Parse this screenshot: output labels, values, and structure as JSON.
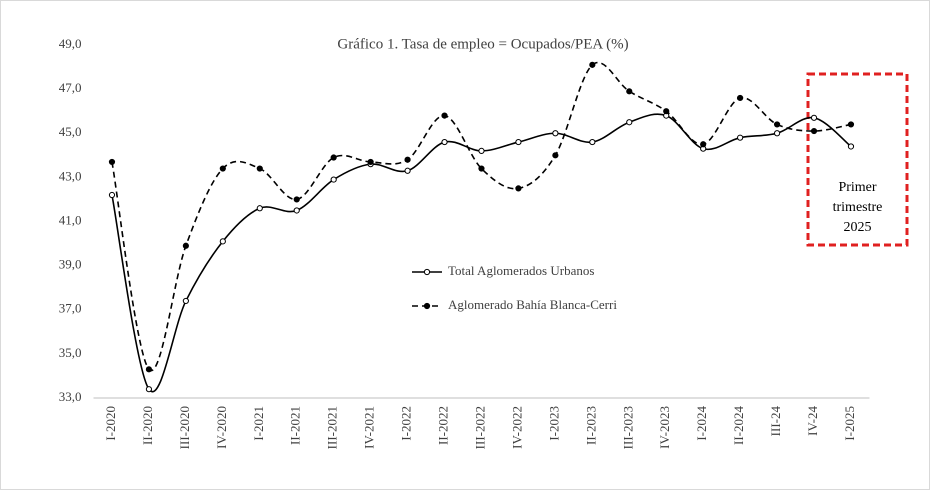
{
  "chart_data": {
    "type": "line",
    "title": "Gráfico  1. Tasa de empleo = Ocupados/PEA (%)",
    "categories": [
      "I-2020",
      "II-2020",
      "III-2020",
      "IV-2020",
      "I-2021",
      "II-2021",
      "III-2021",
      "IV-2021",
      "I-2022",
      "II-2022",
      "III-2022",
      "IV-2022",
      "I-2023",
      "II-2023",
      "III-2023",
      "IV-2023",
      "I-2024",
      "II-2024",
      "III-24",
      "IV-24",
      "I-2025"
    ],
    "series": [
      {
        "name": "Total Aglomerados Urbanos",
        "color": "#000000",
        "dash": "solid",
        "marker": "open",
        "values": [
          42.2,
          33.4,
          37.4,
          40.1,
          41.6,
          41.5,
          42.9,
          43.6,
          43.3,
          44.6,
          44.2,
          44.6,
          45.0,
          44.6,
          45.5,
          45.8,
          44.3,
          44.8,
          45.0,
          45.7,
          44.4
        ]
      },
      {
        "name": "Aglomerado Bahía Blanca-Cerri",
        "color": "#000000",
        "dash": "dashed",
        "marker": "filled",
        "values": [
          43.7,
          34.3,
          39.9,
          43.4,
          43.4,
          42.0,
          43.9,
          43.7,
          43.8,
          45.8,
          43.4,
          42.5,
          44.0,
          48.1,
          46.9,
          46.0,
          44.5,
          46.6,
          45.4,
          45.1,
          45.4
        ]
      }
    ],
    "ylim": [
      33,
      49
    ],
    "yticks": [
      {
        "value": 33,
        "label": "33,0"
      },
      {
        "value": 35,
        "label": "35,0"
      },
      {
        "value": 37,
        "label": "37,0"
      },
      {
        "value": 39,
        "label": "39,0"
      },
      {
        "value": 41,
        "label": "41,0"
      },
      {
        "value": 43,
        "label": "43,0"
      },
      {
        "value": 45,
        "label": "45,0"
      },
      {
        "value": 47,
        "label": "47,0"
      },
      {
        "value": 49,
        "label": "49,0"
      }
    ],
    "grid": false,
    "legend": "center",
    "annotation": [
      "Primer",
      "trimestre",
      "2025"
    ]
  }
}
